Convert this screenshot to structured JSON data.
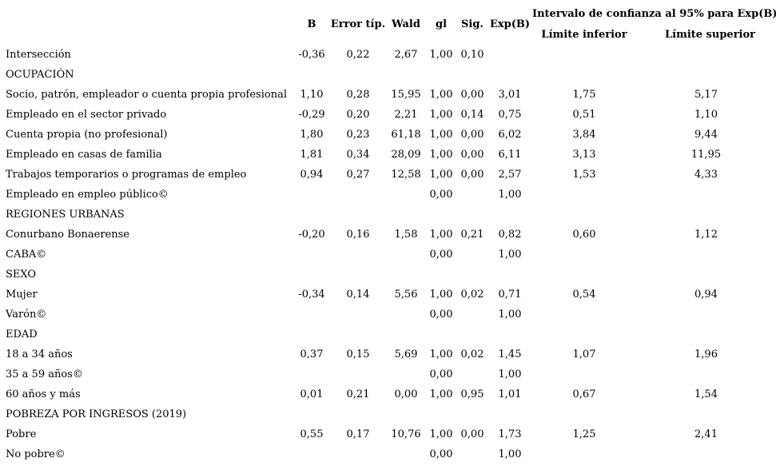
{
  "page": {
    "background_color": "#ffffff",
    "text_color": "#000000"
  },
  "table": {
    "headers": {
      "b": "B",
      "se": "Error típ.",
      "wald": "Wald",
      "gl": "gl",
      "sig": "Sig.",
      "exp": "Exp(B)",
      "ci_title": "Intervalo de confianza al 95% para Exp(B)",
      "ci_lower": "Límite inferior",
      "ci_upper": "Límite superior"
    },
    "rows": [
      {
        "label": "Intersección",
        "b": "-0,36",
        "se": "0,22",
        "wald": "2,67",
        "gl": "1,00",
        "sig": "0,10",
        "exp": "",
        "lo": "",
        "hi": ""
      },
      {
        "label": "OCUPACIÓN",
        "b": "",
        "se": "",
        "wald": "",
        "gl": "",
        "sig": "",
        "exp": "",
        "lo": "",
        "hi": ""
      },
      {
        "label": "Socio, patrón, empleador o cuenta propia profesional",
        "b": "1,10",
        "se": "0,28",
        "wald": "15,95",
        "gl": "1,00",
        "sig": "0,00",
        "exp": "3,01",
        "lo": "1,75",
        "hi": "5,17"
      },
      {
        "label": "Empleado en el sector privado",
        "b": "-0,29",
        "se": "0,20",
        "wald": "2,21",
        "gl": "1,00",
        "sig": "0,14",
        "exp": "0,75",
        "lo": "0,51",
        "hi": "1,10"
      },
      {
        "label": "Cuenta propia (no profesional)",
        "b": "1,80",
        "se": "0,23",
        "wald": "61,18",
        "gl": "1,00",
        "sig": "0,00",
        "exp": "6,02",
        "lo": "3,84",
        "hi": "9,44"
      },
      {
        "label": "Empleado en casas de familia",
        "b": "1,81",
        "se": "0,34",
        "wald": "28,09",
        "gl": "1,00",
        "sig": "0,00",
        "exp": "6,11",
        "lo": "3,13",
        "hi": "11,95"
      },
      {
        "label": "Trabajos temporarios o programas de empleo",
        "b": "0,94",
        "se": "0,27",
        "wald": "12,58",
        "gl": "1,00",
        "sig": "0,00",
        "exp": "2,57",
        "lo": "1,53",
        "hi": "4,33"
      },
      {
        "label": "Empleado en empleo público©",
        "b": "",
        "se": "",
        "wald": "",
        "gl": "0,00",
        "sig": "",
        "exp": "1,00",
        "lo": "",
        "hi": ""
      },
      {
        "label": "REGIONES URBANAS",
        "b": "",
        "se": "",
        "wald": "",
        "gl": "",
        "sig": "",
        "exp": "",
        "lo": "",
        "hi": ""
      },
      {
        "label": "Conurbano Bonaerense",
        "b": "-0,20",
        "se": "0,16",
        "wald": "1,58",
        "gl": "1,00",
        "sig": "0,21",
        "exp": "0,82",
        "lo": "0,60",
        "hi": "1,12"
      },
      {
        "label": "CABA©",
        "b": "",
        "se": "",
        "wald": "",
        "gl": "0,00",
        "sig": "",
        "exp": "1,00",
        "lo": "",
        "hi": ""
      },
      {
        "label": "SEXO",
        "b": "",
        "se": "",
        "wald": "",
        "gl": "",
        "sig": "",
        "exp": "",
        "lo": "",
        "hi": ""
      },
      {
        "label": "Mujer",
        "b": "-0,34",
        "se": "0,14",
        "wald": "5,56",
        "gl": "1,00",
        "sig": "0,02",
        "exp": "0,71",
        "lo": "0,54",
        "hi": "0,94"
      },
      {
        "label": "Varón©",
        "b": "",
        "se": "",
        "wald": "",
        "gl": "0,00",
        "sig": "",
        "exp": "1,00",
        "lo": "",
        "hi": ""
      },
      {
        "label": "EDAD",
        "b": "",
        "se": "",
        "wald": "",
        "gl": "",
        "sig": "",
        "exp": "",
        "lo": "",
        "hi": ""
      },
      {
        "label": "18 a 34 años",
        "b": "0,37",
        "se": "0,15",
        "wald": "5,69",
        "gl": "1,00",
        "sig": "0,02",
        "exp": "1,45",
        "lo": "1,07",
        "hi": "1,96"
      },
      {
        "label": "35 a 59 años©",
        "b": "",
        "se": "",
        "wald": "",
        "gl": "0,00",
        "sig": "",
        "exp": "1,00",
        "lo": "",
        "hi": ""
      },
      {
        "label": "60 años y más",
        "b": "0,01",
        "se": "0,21",
        "wald": "0,00",
        "gl": "1,00",
        "sig": "0,95",
        "exp": "1,01",
        "lo": "0,67",
        "hi": "1,54"
      },
      {
        "label": "POBREZA POR INGRESOS (2019)",
        "b": "",
        "se": "",
        "wald": "",
        "gl": "",
        "sig": "",
        "exp": "",
        "lo": "",
        "hi": ""
      },
      {
        "label": "Pobre",
        "b": "0,55",
        "se": "0,17",
        "wald": "10,76",
        "gl": "1,00",
        "sig": "0,00",
        "exp": "1,73",
        "lo": "1,25",
        "hi": "2,41"
      },
      {
        "label": "No pobre©",
        "b": "",
        "se": "",
        "wald": "",
        "gl": "0,00",
        "sig": "",
        "exp": "1,00",
        "lo": "",
        "hi": ""
      }
    ]
  }
}
